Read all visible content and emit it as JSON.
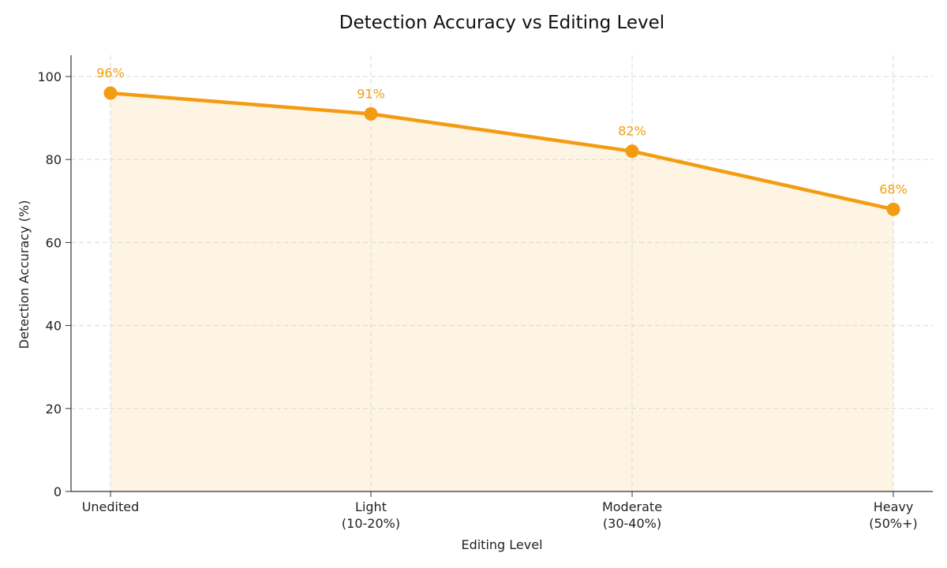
{
  "chart_data": {
    "type": "line",
    "title": "Detection Accuracy vs Editing Level",
    "xlabel": "Editing Level",
    "ylabel": "Detection Accuracy (%)",
    "categories": [
      "Unedited",
      "Light (10-20%)",
      "Moderate (30-40%)",
      "Heavy (50%+)"
    ],
    "category_lines": [
      [
        "Unedited"
      ],
      [
        "Light",
        "(10-20%)"
      ],
      [
        "Moderate",
        "(30-40%)"
      ],
      [
        "Heavy",
        "(50%+)"
      ]
    ],
    "series": [
      {
        "name": "Detection Accuracy",
        "values": [
          96,
          91,
          82,
          68
        ],
        "color": "#f39c12",
        "fill": "#fdf4e3"
      }
    ],
    "data_labels": [
      "96%",
      "91%",
      "82%",
      "68%"
    ],
    "yticks": [
      0,
      20,
      40,
      60,
      80,
      100
    ],
    "ylim": [
      0,
      105
    ],
    "grid": true,
    "legend": false
  }
}
